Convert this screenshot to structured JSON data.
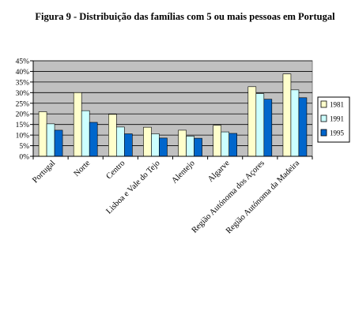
{
  "chart_data": {
    "type": "bar",
    "title": "Figura 9 - Distribuição das famílias com 5 ou mais pessoas em Portugal",
    "categories": [
      "Portugal",
      "Norte",
      "Centro",
      "Lisboa e Vale do Tejo",
      "Alentejo",
      "Algarve",
      "Região Autónoma dos Açores",
      "Região Autónoma da Madeira"
    ],
    "series": [
      {
        "name": "1981",
        "color": "#FFFFCC",
        "values": [
          21.0,
          30.0,
          19.8,
          13.7,
          12.3,
          14.6,
          32.8,
          38.8
        ]
      },
      {
        "name": "1991",
        "color": "#CCFFFF",
        "values": [
          15.3,
          21.5,
          13.8,
          10.6,
          9.5,
          11.5,
          29.5,
          31.3
        ]
      },
      {
        "name": "1995",
        "color": "#0066CC",
        "values": [
          12.3,
          16.0,
          10.6,
          8.6,
          8.5,
          10.8,
          26.9,
          27.6
        ]
      }
    ],
    "yticks": [
      "0%",
      "5%",
      "10%",
      "15%",
      "20%",
      "25%",
      "30%",
      "35%",
      "40%",
      "45%"
    ],
    "ylim": [
      0,
      45
    ],
    "y_tick_step": 5,
    "plot_background": "#C0C0C0",
    "grid": true,
    "legend_position": "right"
  }
}
